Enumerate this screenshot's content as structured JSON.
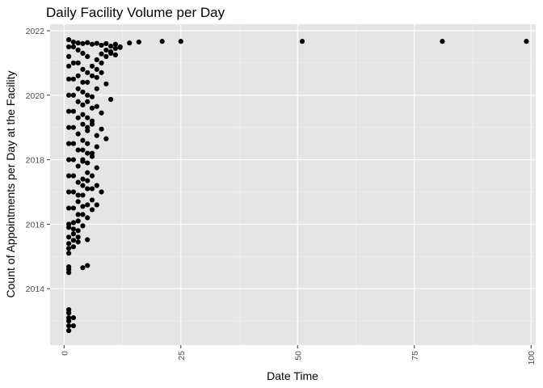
{
  "chart_data": {
    "type": "scatter",
    "title": "Daily Facility Volume per Day",
    "xlabel": "Date Time",
    "ylabel": "Count of Appointments per Day at the Facility",
    "xlim": [
      -3,
      101
    ],
    "ylim": [
      2012.25,
      2022.2
    ],
    "x_ticks": [
      0,
      25,
      50,
      75,
      100
    ],
    "x_tick_labels": [
      "0",
      "25",
      "50",
      "75",
      "100"
    ],
    "y_ticks": [
      2014,
      2016,
      2018,
      2020,
      2022
    ],
    "y_tick_labels": [
      "2014",
      "2016",
      "2018",
      "2020",
      "2022"
    ],
    "grid": true,
    "legend": "none",
    "colors": {
      "panel": "#e5e5e5",
      "grid_major": "#ffffff",
      "point": "#000000"
    },
    "points": [
      {
        "x": 1,
        "y": 2012.7
      },
      {
        "x": 1,
        "y": 2012.85
      },
      {
        "x": 1,
        "y": 2013.0
      },
      {
        "x": 1,
        "y": 2013.1
      },
      {
        "x": 1,
        "y": 2013.25
      },
      {
        "x": 1,
        "y": 2013.35
      },
      {
        "x": 2,
        "y": 2012.85
      },
      {
        "x": 2,
        "y": 2013.1
      },
      {
        "x": 1,
        "y": 2014.5
      },
      {
        "x": 1,
        "y": 2014.6
      },
      {
        "x": 1,
        "y": 2014.68
      },
      {
        "x": 4,
        "y": 2014.65
      },
      {
        "x": 5,
        "y": 2014.72
      },
      {
        "x": 1,
        "y": 2015.1
      },
      {
        "x": 1,
        "y": 2015.25
      },
      {
        "x": 1,
        "y": 2015.4
      },
      {
        "x": 2,
        "y": 2015.3
      },
      {
        "x": 3,
        "y": 2015.45
      },
      {
        "x": 5,
        "y": 2015.52
      },
      {
        "x": 1,
        "y": 2015.6
      },
      {
        "x": 2,
        "y": 2015.7
      },
      {
        "x": 3,
        "y": 2015.8
      },
      {
        "x": 1,
        "y": 2015.9
      },
      {
        "x": 4,
        "y": 2015.95
      },
      {
        "x": 2,
        "y": 2016.05
      },
      {
        "x": 5,
        "y": 2016.2
      },
      {
        "x": 3,
        "y": 2016.3
      },
      {
        "x": 6,
        "y": 2016.45
      },
      {
        "x": 4,
        "y": 2016.55
      },
      {
        "x": 7,
        "y": 2016.6
      },
      {
        "x": 6,
        "y": 2016.75
      },
      {
        "x": 8,
        "y": 2017.0
      },
      {
        "x": 7,
        "y": 2017.2
      },
      {
        "x": 5,
        "y": 2017.35
      },
      {
        "x": 6,
        "y": 2017.5
      },
      {
        "x": 7,
        "y": 2017.75
      },
      {
        "x": 5,
        "y": 2017.9
      },
      {
        "x": 6,
        "y": 2018.1
      },
      {
        "x": 4,
        "y": 2018.3
      },
      {
        "x": 5,
        "y": 2018.5
      },
      {
        "x": 7,
        "y": 2018.75
      },
      {
        "x": 9,
        "y": 2018.65
      },
      {
        "x": 8,
        "y": 2018.95
      },
      {
        "x": 6,
        "y": 2019.1
      },
      {
        "x": 5,
        "y": 2019.3
      },
      {
        "x": 8,
        "y": 2019.45
      },
      {
        "x": 7,
        "y": 2019.65
      },
      {
        "x": 10,
        "y": 2019.87
      },
      {
        "x": 6,
        "y": 2019.95
      },
      {
        "x": 7,
        "y": 2020.2
      },
      {
        "x": 9,
        "y": 2020.35
      },
      {
        "x": 7,
        "y": 2020.55
      },
      {
        "x": 8,
        "y": 2020.7
      },
      {
        "x": 8,
        "y": 2021.0
      },
      {
        "x": 9,
        "y": 2021.2
      },
      {
        "x": 10,
        "y": 2021.35
      },
      {
        "x": 11,
        "y": 2021.45
      },
      {
        "x": 12,
        "y": 2021.48
      },
      {
        "x": 14,
        "y": 2021.62
      },
      {
        "x": 16,
        "y": 2021.65
      },
      {
        "x": 21,
        "y": 2021.67
      },
      {
        "x": 25,
        "y": 2021.67
      },
      {
        "x": 51,
        "y": 2021.67
      },
      {
        "x": 81,
        "y": 2021.67
      },
      {
        "x": 99,
        "y": 2021.67
      },
      {
        "x": 2,
        "y": 2021.65
      },
      {
        "x": 3,
        "y": 2021.62
      },
      {
        "x": 4,
        "y": 2021.6
      },
      {
        "x": 5,
        "y": 2021.63
      },
      {
        "x": 6,
        "y": 2021.58
      },
      {
        "x": 7,
        "y": 2021.61
      },
      {
        "x": 8,
        "y": 2021.55
      },
      {
        "x": 9,
        "y": 2021.6
      },
      {
        "x": 10,
        "y": 2021.52
      },
      {
        "x": 11,
        "y": 2021.58
      },
      {
        "x": 12,
        "y": 2021.5
      },
      {
        "x": 9,
        "y": 2021.4
      },
      {
        "x": 10,
        "y": 2021.3
      },
      {
        "x": 11,
        "y": 2021.25
      },
      {
        "x": 8,
        "y": 2021.28
      },
      {
        "x": 7,
        "y": 2021.1
      },
      {
        "x": 6,
        "y": 2020.9
      },
      {
        "x": 7,
        "y": 2020.8
      },
      {
        "x": 6,
        "y": 2020.6
      },
      {
        "x": 5,
        "y": 2020.4
      },
      {
        "x": 4,
        "y": 2020.1
      },
      {
        "x": 5,
        "y": 2019.8
      },
      {
        "x": 6,
        "y": 2019.6
      },
      {
        "x": 4,
        "y": 2019.4
      },
      {
        "x": 6,
        "y": 2019.2
      },
      {
        "x": 5,
        "y": 2018.9
      },
      {
        "x": 7,
        "y": 2018.4
      },
      {
        "x": 6,
        "y": 2018.2
      },
      {
        "x": 4,
        "y": 2017.95
      },
      {
        "x": 5,
        "y": 2017.6
      },
      {
        "x": 4,
        "y": 2017.4
      },
      {
        "x": 6,
        "y": 2017.1
      },
      {
        "x": 4,
        "y": 2016.9
      },
      {
        "x": 3,
        "y": 2016.7
      },
      {
        "x": 4,
        "y": 2016.3
      },
      {
        "x": 3,
        "y": 2016.1
      },
      {
        "x": 2,
        "y": 2015.85
      },
      {
        "x": 3,
        "y": 2015.6
      },
      {
        "x": 2,
        "y": 2015.5
      },
      {
        "x": 1,
        "y": 2021.72
      },
      {
        "x": 1,
        "y": 2021.5
      },
      {
        "x": 1,
        "y": 2021.2
      },
      {
        "x": 1,
        "y": 2020.9
      },
      {
        "x": 1,
        "y": 2020.5
      },
      {
        "x": 1,
        "y": 2020.0
      },
      {
        "x": 1,
        "y": 2019.5
      },
      {
        "x": 1,
        "y": 2019.0
      },
      {
        "x": 1,
        "y": 2018.5
      },
      {
        "x": 1,
        "y": 2018.0
      },
      {
        "x": 1,
        "y": 2017.5
      },
      {
        "x": 1,
        "y": 2017.0
      },
      {
        "x": 1,
        "y": 2016.5
      },
      {
        "x": 1,
        "y": 2016.0
      },
      {
        "x": 2,
        "y": 2021.5
      },
      {
        "x": 2,
        "y": 2021.0
      },
      {
        "x": 2,
        "y": 2020.5
      },
      {
        "x": 2,
        "y": 2020.0
      },
      {
        "x": 2,
        "y": 2019.5
      },
      {
        "x": 2,
        "y": 2019.0
      },
      {
        "x": 2,
        "y": 2018.5
      },
      {
        "x": 2,
        "y": 2018.0
      },
      {
        "x": 2,
        "y": 2017.5
      },
      {
        "x": 2,
        "y": 2017.0
      },
      {
        "x": 2,
        "y": 2016.5
      },
      {
        "x": 3,
        "y": 2021.4
      },
      {
        "x": 3,
        "y": 2021.0
      },
      {
        "x": 3,
        "y": 2020.6
      },
      {
        "x": 3,
        "y": 2020.2
      },
      {
        "x": 3,
        "y": 2019.8
      },
      {
        "x": 3,
        "y": 2019.3
      },
      {
        "x": 3,
        "y": 2018.8
      },
      {
        "x": 3,
        "y": 2018.3
      },
      {
        "x": 3,
        "y": 2017.8
      },
      {
        "x": 3,
        "y": 2017.3
      },
      {
        "x": 3,
        "y": 2016.9
      },
      {
        "x": 4,
        "y": 2021.3
      },
      {
        "x": 4,
        "y": 2020.8
      },
      {
        "x": 4,
        "y": 2020.4
      },
      {
        "x": 4,
        "y": 2019.7
      },
      {
        "x": 4,
        "y": 2019.1
      },
      {
        "x": 4,
        "y": 2018.6
      },
      {
        "x": 4,
        "y": 2018.0
      },
      {
        "x": 4,
        "y": 2017.2
      },
      {
        "x": 5,
        "y": 2021.2
      },
      {
        "x": 5,
        "y": 2020.7
      },
      {
        "x": 5,
        "y": 2020.0
      },
      {
        "x": 5,
        "y": 2019.0
      },
      {
        "x": 5,
        "y": 2018.2
      },
      {
        "x": 5,
        "y": 2017.1
      },
      {
        "x": 5,
        "y": 2016.6
      }
    ]
  }
}
